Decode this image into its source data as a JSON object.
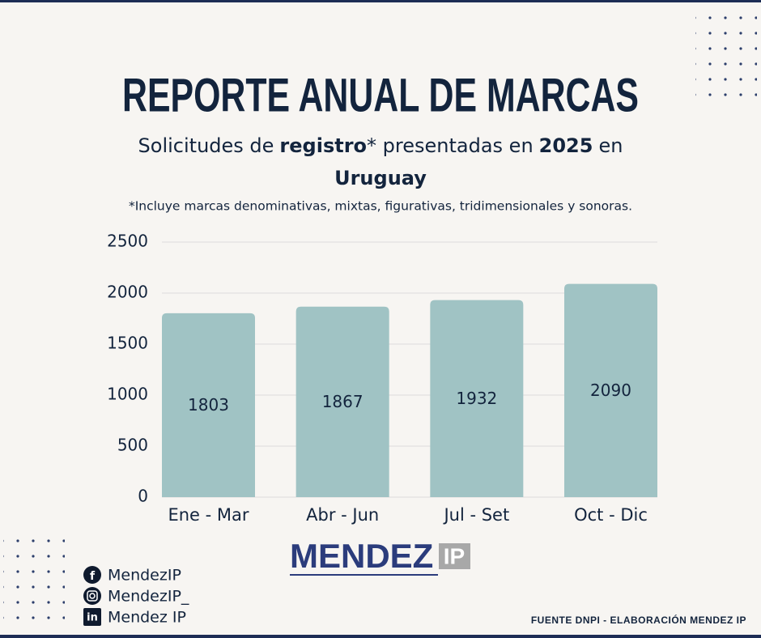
{
  "chart_data": {
    "type": "bar",
    "title": "REPORTE ANUAL DE MARCAS",
    "subtitle": [
      "Solicitudes de",
      "registro",
      "* presentadas en",
      "2025",
      "en"
    ],
    "subtitle_line2": "Uruguay",
    "note": "*Incluye marcas denominativas, mixtas, figurativas, tridimensionales y sonoras.",
    "categories": [
      "Ene - Mar",
      "Abr - Jun",
      "Jul - Set",
      "Oct - Dic"
    ],
    "values": [
      1803,
      1867,
      1932,
      2090
    ],
    "color": "#a0c3c4",
    "ylim": [
      0,
      2500
    ],
    "yticks": [
      0,
      500,
      1000,
      1500,
      2000,
      2500
    ],
    "grid": true
  },
  "brand": {
    "name": "MENDEZ",
    "suffix": "IP"
  },
  "social": [
    "MendezIP",
    "MendezIP_",
    "Mendez IP"
  ],
  "footer": "FUENTE DNPI - ELABORACIÓN MENDEZ IP"
}
